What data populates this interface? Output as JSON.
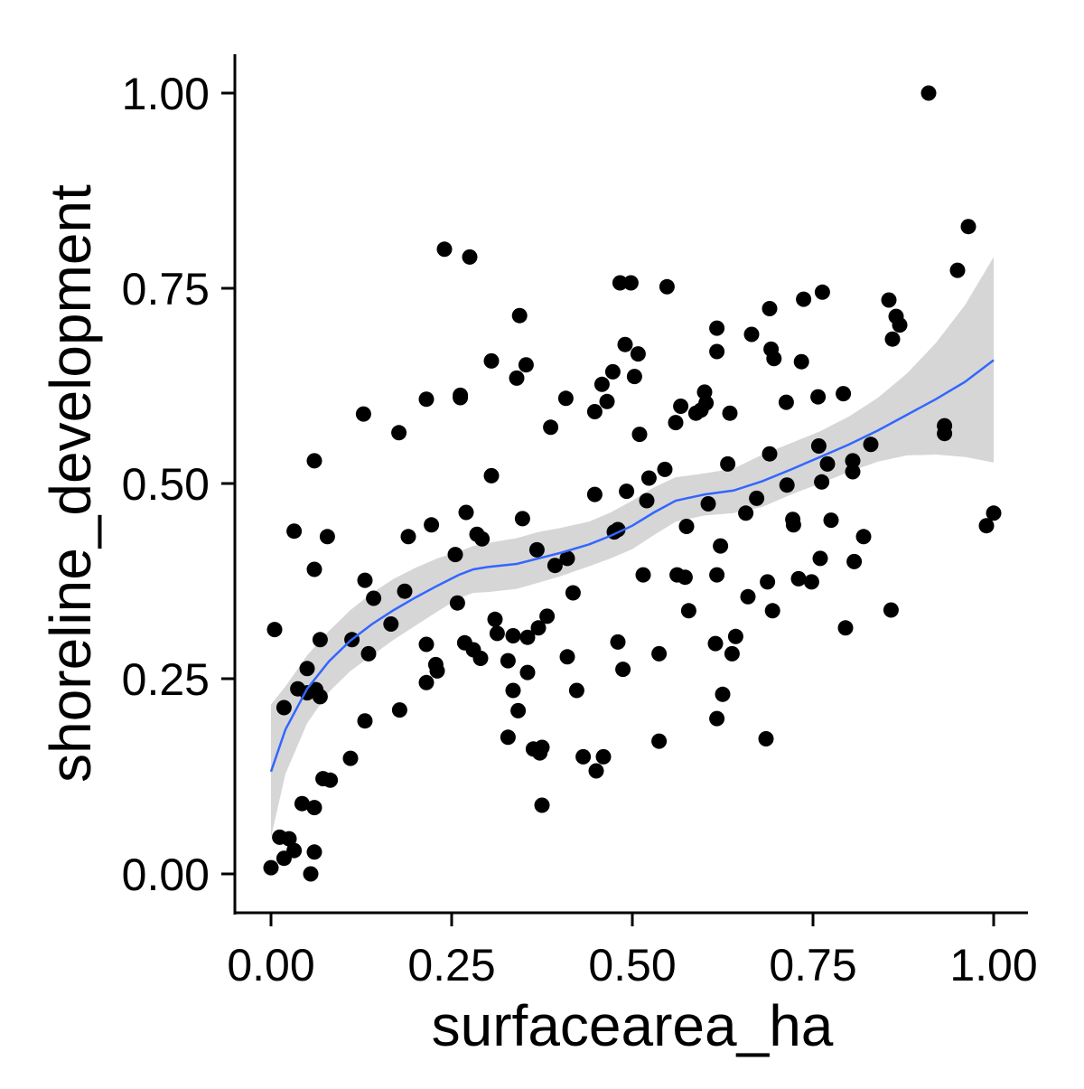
{
  "chart_data": {
    "type": "scatter",
    "title": "",
    "xlabel": "surfacearea_ha",
    "ylabel": "shoreline_development",
    "xlim": [
      0,
      1
    ],
    "ylim": [
      0,
      1
    ],
    "grid": false,
    "legend": "none",
    "x_ticks": [
      "0.00",
      "0.25",
      "0.50",
      "0.75",
      "1.00"
    ],
    "y_ticks": [
      "0.00",
      "0.25",
      "0.50",
      "0.75",
      "1.00"
    ],
    "colors": {
      "points": "#000000",
      "smooth_line": "#3366FF",
      "confidence_band": "#999999"
    },
    "points": [
      [
        0.0,
        0.008
      ],
      [
        0.005,
        0.313
      ],
      [
        0.012,
        0.047
      ],
      [
        0.018,
        0.02
      ],
      [
        0.018,
        0.213
      ],
      [
        0.025,
        0.045
      ],
      [
        0.032,
        0.03
      ],
      [
        0.032,
        0.439
      ],
      [
        0.037,
        0.237
      ],
      [
        0.043,
        0.09
      ],
      [
        0.05,
        0.263
      ],
      [
        0.05,
        0.232
      ],
      [
        0.055,
        0.0
      ],
      [
        0.06,
        0.028
      ],
      [
        0.06,
        0.085
      ],
      [
        0.06,
        0.39
      ],
      [
        0.06,
        0.529
      ],
      [
        0.062,
        0.236
      ],
      [
        0.068,
        0.3
      ],
      [
        0.068,
        0.227
      ],
      [
        0.072,
        0.122
      ],
      [
        0.078,
        0.432
      ],
      [
        0.082,
        0.12
      ],
      [
        0.112,
        0.3
      ],
      [
        0.11,
        0.148
      ],
      [
        0.128,
        0.589
      ],
      [
        0.13,
        0.196
      ],
      [
        0.13,
        0.376
      ],
      [
        0.135,
        0.282
      ],
      [
        0.142,
        0.353
      ],
      [
        0.166,
        0.32
      ],
      [
        0.177,
        0.565
      ],
      [
        0.178,
        0.21
      ],
      [
        0.185,
        0.362
      ],
      [
        0.19,
        0.432
      ],
      [
        0.215,
        0.294
      ],
      [
        0.215,
        0.608
      ],
      [
        0.215,
        0.245
      ],
      [
        0.222,
        0.447
      ],
      [
        0.228,
        0.268
      ],
      [
        0.23,
        0.26
      ],
      [
        0.24,
        0.8
      ],
      [
        0.255,
        0.409
      ],
      [
        0.258,
        0.347
      ],
      [
        0.262,
        0.61
      ],
      [
        0.262,
        0.613
      ],
      [
        0.268,
        0.296
      ],
      [
        0.27,
        0.463
      ],
      [
        0.275,
        0.79
      ],
      [
        0.28,
        0.287
      ],
      [
        0.285,
        0.435
      ],
      [
        0.29,
        0.276
      ],
      [
        0.292,
        0.429
      ],
      [
        0.305,
        0.657
      ],
      [
        0.305,
        0.51
      ],
      [
        0.31,
        0.326
      ],
      [
        0.313,
        0.308
      ],
      [
        0.328,
        0.175
      ],
      [
        0.328,
        0.273
      ],
      [
        0.335,
        0.305
      ],
      [
        0.335,
        0.235
      ],
      [
        0.34,
        0.635
      ],
      [
        0.342,
        0.209
      ],
      [
        0.344,
        0.715
      ],
      [
        0.348,
        0.455
      ],
      [
        0.353,
        0.652
      ],
      [
        0.355,
        0.303
      ],
      [
        0.355,
        0.258
      ],
      [
        0.363,
        0.16
      ],
      [
        0.368,
        0.415
      ],
      [
        0.37,
        0.315
      ],
      [
        0.372,
        0.155
      ],
      [
        0.375,
        0.088
      ],
      [
        0.375,
        0.162
      ],
      [
        0.382,
        0.33
      ],
      [
        0.387,
        0.572
      ],
      [
        0.393,
        0.395
      ],
      [
        0.408,
        0.609
      ],
      [
        0.41,
        0.404
      ],
      [
        0.41,
        0.278
      ],
      [
        0.418,
        0.36
      ],
      [
        0.423,
        0.235
      ],
      [
        0.432,
        0.15
      ],
      [
        0.448,
        0.592
      ],
      [
        0.448,
        0.486
      ],
      [
        0.45,
        0.132
      ],
      [
        0.458,
        0.627
      ],
      [
        0.46,
        0.15
      ],
      [
        0.465,
        0.605
      ],
      [
        0.473,
        0.643
      ],
      [
        0.475,
        0.438
      ],
      [
        0.48,
        0.441
      ],
      [
        0.48,
        0.297
      ],
      [
        0.483,
        0.757
      ],
      [
        0.487,
        0.262
      ],
      [
        0.49,
        0.678
      ],
      [
        0.492,
        0.49
      ],
      [
        0.498,
        0.757
      ],
      [
        0.503,
        0.637
      ],
      [
        0.508,
        0.666
      ],
      [
        0.51,
        0.563
      ],
      [
        0.515,
        0.383
      ],
      [
        0.52,
        0.478
      ],
      [
        0.523,
        0.507
      ],
      [
        0.537,
        0.282
      ],
      [
        0.537,
        0.17
      ],
      [
        0.545,
        0.518
      ],
      [
        0.548,
        0.752
      ],
      [
        0.56,
        0.578
      ],
      [
        0.562,
        0.383
      ],
      [
        0.567,
        0.599
      ],
      [
        0.573,
        0.38
      ],
      [
        0.575,
        0.445
      ],
      [
        0.578,
        0.337
      ],
      [
        0.588,
        0.59
      ],
      [
        0.595,
        0.594
      ],
      [
        0.6,
        0.617
      ],
      [
        0.602,
        0.603
      ],
      [
        0.605,
        0.474
      ],
      [
        0.615,
        0.295
      ],
      [
        0.617,
        0.699
      ],
      [
        0.617,
        0.669
      ],
      [
        0.617,
        0.199
      ],
      [
        0.617,
        0.383
      ],
      [
        0.622,
        0.42
      ],
      [
        0.625,
        0.23
      ],
      [
        0.632,
        0.525
      ],
      [
        0.635,
        0.59
      ],
      [
        0.638,
        0.282
      ],
      [
        0.643,
        0.304
      ],
      [
        0.657,
        0.462
      ],
      [
        0.66,
        0.355
      ],
      [
        0.665,
        0.691
      ],
      [
        0.672,
        0.481
      ],
      [
        0.685,
        0.173
      ],
      [
        0.687,
        0.374
      ],
      [
        0.69,
        0.724
      ],
      [
        0.69,
        0.538
      ],
      [
        0.692,
        0.672
      ],
      [
        0.694,
        0.337
      ],
      [
        0.696,
        0.66
      ],
      [
        0.713,
        0.604
      ],
      [
        0.714,
        0.498
      ],
      [
        0.722,
        0.454
      ],
      [
        0.723,
        0.447
      ],
      [
        0.73,
        0.378
      ],
      [
        0.734,
        0.656
      ],
      [
        0.737,
        0.736
      ],
      [
        0.748,
        0.374
      ],
      [
        0.757,
        0.611
      ],
      [
        0.758,
        0.548
      ],
      [
        0.76,
        0.404
      ],
      [
        0.762,
        0.502
      ],
      [
        0.763,
        0.745
      ],
      [
        0.77,
        0.525
      ],
      [
        0.775,
        0.453
      ],
      [
        0.792,
        0.615
      ],
      [
        0.795,
        0.315
      ],
      [
        0.805,
        0.529
      ],
      [
        0.805,
        0.515
      ],
      [
        0.807,
        0.4
      ],
      [
        0.82,
        0.432
      ],
      [
        0.83,
        0.55
      ],
      [
        0.855,
        0.735
      ],
      [
        0.858,
        0.338
      ],
      [
        0.86,
        0.685
      ],
      [
        0.865,
        0.714
      ],
      [
        0.87,
        0.703
      ],
      [
        0.91,
        1.0
      ],
      [
        0.932,
        0.574
      ],
      [
        0.932,
        0.564
      ],
      [
        0.95,
        0.773
      ],
      [
        0.965,
        0.829
      ],
      [
        0.99,
        0.446
      ],
      [
        1.0,
        0.462
      ]
    ],
    "smooth_line": {
      "x": [
        0.0,
        0.02,
        0.05,
        0.08,
        0.11,
        0.14,
        0.17,
        0.2,
        0.23,
        0.26,
        0.28,
        0.3,
        0.34,
        0.37,
        0.4,
        0.44,
        0.47,
        0.5,
        0.53,
        0.56,
        0.6,
        0.64,
        0.68,
        0.72,
        0.76,
        0.8,
        0.84,
        0.88,
        0.92,
        0.96,
        1.0
      ],
      "y": [
        0.131,
        0.185,
        0.237,
        0.272,
        0.299,
        0.32,
        0.338,
        0.354,
        0.369,
        0.383,
        0.39,
        0.393,
        0.397,
        0.404,
        0.411,
        0.422,
        0.433,
        0.446,
        0.463,
        0.478,
        0.486,
        0.491,
        0.503,
        0.518,
        0.534,
        0.55,
        0.568,
        0.588,
        0.608,
        0.63,
        0.658
      ]
    },
    "band": {
      "x": [
        0.0,
        0.02,
        0.05,
        0.08,
        0.11,
        0.14,
        0.17,
        0.2,
        0.23,
        0.26,
        0.28,
        0.3,
        0.34,
        0.37,
        0.4,
        0.44,
        0.47,
        0.5,
        0.53,
        0.56,
        0.6,
        0.64,
        0.68,
        0.72,
        0.76,
        0.8,
        0.84,
        0.88,
        0.92,
        0.96,
        1.0
      ],
      "lower": [
        0.047,
        0.128,
        0.193,
        0.233,
        0.26,
        0.28,
        0.3,
        0.318,
        0.336,
        0.353,
        0.36,
        0.361,
        0.365,
        0.373,
        0.381,
        0.394,
        0.404,
        0.416,
        0.434,
        0.451,
        0.459,
        0.462,
        0.47,
        0.486,
        0.5,
        0.515,
        0.528,
        0.536,
        0.537,
        0.534,
        0.527
      ],
      "upper": [
        0.217,
        0.24,
        0.28,
        0.311,
        0.338,
        0.36,
        0.378,
        0.392,
        0.404,
        0.413,
        0.42,
        0.424,
        0.43,
        0.438,
        0.443,
        0.451,
        0.463,
        0.478,
        0.495,
        0.508,
        0.513,
        0.519,
        0.537,
        0.552,
        0.567,
        0.586,
        0.61,
        0.641,
        0.68,
        0.728,
        0.79
      ]
    }
  }
}
